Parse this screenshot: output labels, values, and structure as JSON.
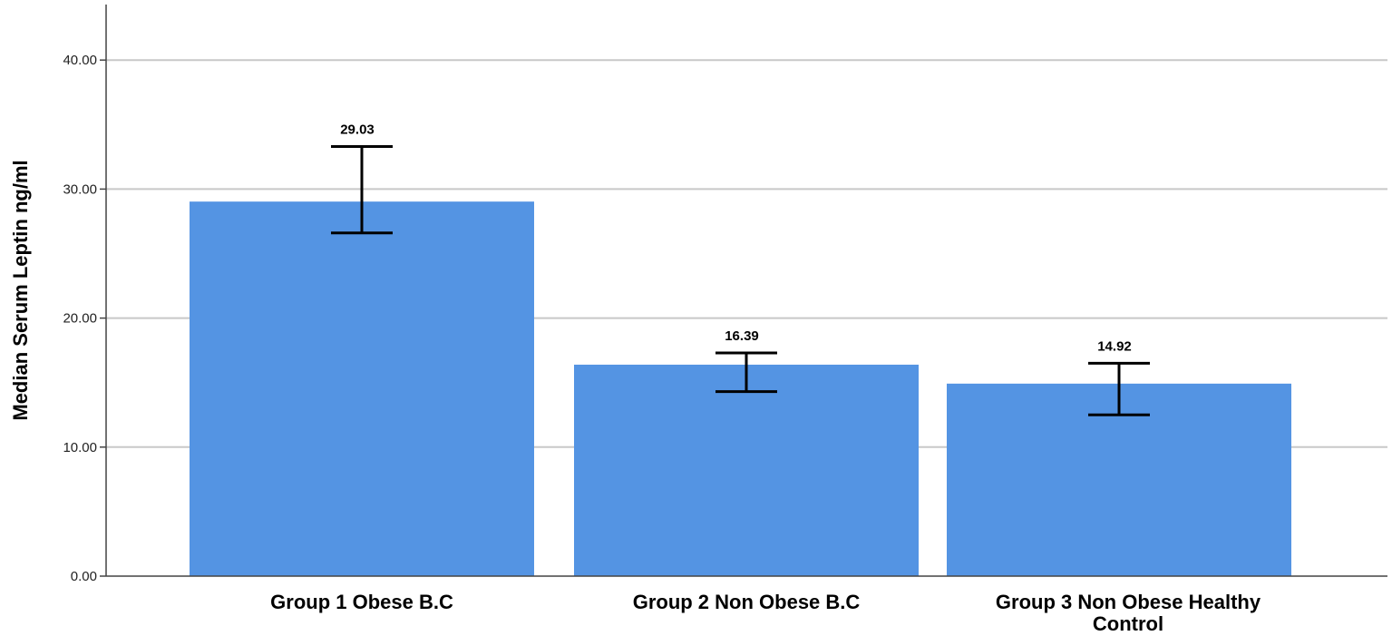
{
  "chart_data": {
    "type": "bar",
    "categories": [
      [
        "Group 1 Obese B.C"
      ],
      [
        "Group 2 Non Obese B.C"
      ],
      [
        "Group 3 Non Obese Healthy",
        "Control"
      ]
    ],
    "values": [
      29.03,
      16.39,
      14.92
    ],
    "value_labels": [
      "29.03",
      "16.39",
      "14.92"
    ],
    "error_bars": [
      {
        "low": 26.6,
        "high": 33.3
      },
      {
        "low": 14.3,
        "high": 17.3
      },
      {
        "low": 12.5,
        "high": 16.5
      }
    ],
    "ylabel": "Median Serum Leptin ng/ml",
    "xlabel": "",
    "ylim": [
      0,
      44
    ],
    "yticks": [
      0,
      10,
      20,
      30,
      40
    ],
    "ytick_labels": [
      "0.00",
      "10.00",
      "20.00",
      "30.00",
      "40.00"
    ],
    "grid": true,
    "bar_color": "#5494e3",
    "grid_color": "#c8c8c8"
  }
}
